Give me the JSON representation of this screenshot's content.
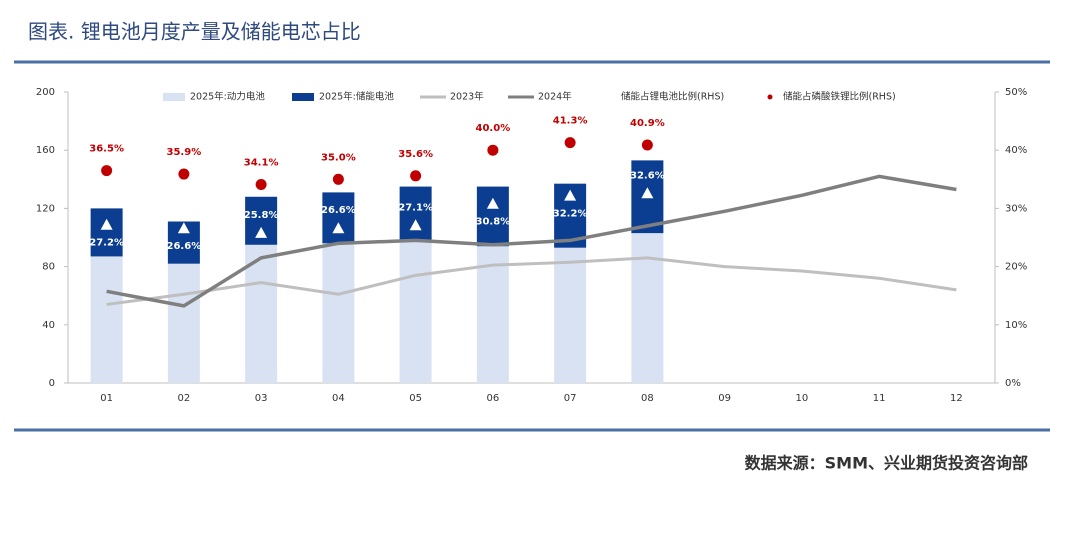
{
  "chart_data": {
    "type": "bar",
    "title": "图表. 锂电池月度产量及储能电芯占比",
    "source": "数据来源：SMM、兴业期货投资咨询部",
    "categories": [
      "01",
      "02",
      "03",
      "04",
      "05",
      "06",
      "07",
      "08",
      "09",
      "10",
      "11",
      "12"
    ],
    "ylim": [
      0,
      200
    ],
    "yticks": [
      0,
      40,
      80,
      120,
      160,
      200
    ],
    "y2lim": [
      0,
      50
    ],
    "y2ticks": [
      {
        "value": 0,
        "label": "0%"
      },
      {
        "value": 10,
        "label": "10%"
      },
      {
        "value": 20,
        "label": "20%"
      },
      {
        "value": 30,
        "label": "30%"
      },
      {
        "value": 40,
        "label": "40%"
      },
      {
        "value": 50,
        "label": "50%"
      }
    ],
    "series": [
      {
        "name": "2025年:动力电池",
        "type": "bar",
        "color": "#d9e2f3",
        "values": [
          87,
          82,
          95,
          96,
          98,
          94,
          93,
          103,
          null,
          null,
          null,
          null
        ]
      },
      {
        "name": "2025年:储能电池",
        "type": "bar",
        "color": "#0b3d91",
        "values": [
          33,
          29,
          33,
          35,
          37,
          41,
          44,
          50,
          null,
          null,
          null,
          null
        ]
      },
      {
        "name": "2023年",
        "type": "line",
        "color": "#bfbfbf",
        "values": [
          54,
          61,
          69,
          61,
          74,
          81,
          83,
          86,
          80,
          77,
          72,
          64
        ]
      },
      {
        "name": "2024年",
        "type": "line",
        "color": "#7f7f7f",
        "values": [
          63,
          53,
          86,
          96,
          98,
          95,
          98,
          108,
          118,
          129,
          142,
          133
        ]
      },
      {
        "name": "储能占锂电池比例(RHS)",
        "type": "scatter",
        "marker": "triangle",
        "axis": "y2",
        "color": "#ffffff",
        "label_color": "#ffffff",
        "values": [
          27.2,
          26.6,
          25.8,
          26.6,
          27.1,
          30.8,
          32.2,
          32.6,
          null,
          null,
          null,
          null
        ],
        "value_labels": [
          "27.2%",
          "26.6%",
          "25.8%",
          "26.6%",
          "27.1%",
          "30.8%",
          "32.2%",
          "32.6%",
          null,
          null,
          null,
          null
        ]
      },
      {
        "name": "储能占磷酸铁锂比例(RHS)",
        "type": "scatter",
        "marker": "circle",
        "axis": "y2",
        "color": "#c00000",
        "label_color": "#c00000",
        "values": [
          36.5,
          35.9,
          34.1,
          35.0,
          35.6,
          40.0,
          41.3,
          40.9,
          null,
          null,
          null,
          null
        ],
        "value_labels": [
          "36.5%",
          "35.9%",
          "34.1%",
          "35.0%",
          "35.6%",
          "40.0%",
          "41.3%",
          "40.9%",
          null,
          null,
          null,
          null
        ]
      }
    ]
  }
}
